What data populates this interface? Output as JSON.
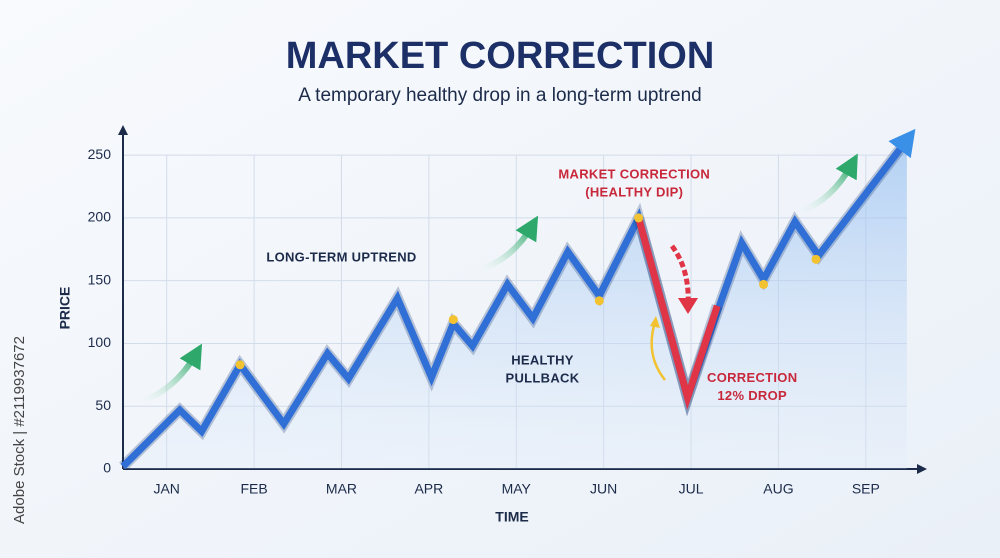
{
  "chart_data": {
    "type": "line",
    "title": "MARKET CORRECTION",
    "subtitle": "A temporary healthy drop in a long-term uptrend",
    "x_label": "TIME",
    "y_label": "PRICE",
    "watermark": "Adobe Stock | #2119937672",
    "xlim": [
      0.5,
      9.7
    ],
    "xticks": [
      {
        "value": 1,
        "label": "JAN"
      },
      {
        "value": 2,
        "label": "FEB"
      },
      {
        "value": 3,
        "label": "MAR"
      },
      {
        "value": 4,
        "label": "APR"
      },
      {
        "value": 5,
        "label": "MAY"
      },
      {
        "value": 6,
        "label": "JUN"
      },
      {
        "value": 7,
        "label": "JUL"
      },
      {
        "value": 8,
        "label": "AUG"
      },
      {
        "value": 9,
        "label": "SEP"
      }
    ],
    "ylim": [
      0,
      270
    ],
    "yticks": [
      0,
      50,
      100,
      150,
      200,
      250
    ],
    "grid": true,
    "series": [
      {
        "color": "#2f6fd6",
        "x": [
          0.5,
          1.15,
          1.4,
          1.84,
          2.34,
          2.84,
          3.08,
          3.64,
          4.03,
          4.28,
          4.5,
          4.9,
          5.19,
          5.59,
          5.95,
          6.4,
          6.96,
          7.35,
          7.58,
          7.83,
          8.19,
          8.46,
          9.47
        ],
        "values": [
          2,
          47,
          30,
          83,
          36,
          92,
          72,
          136,
          73,
          116,
          98,
          147,
          120,
          173,
          138,
          200,
          57,
          135,
          180,
          151,
          197,
          170,
          262
        ]
      },
      {
        "color": "#e03546",
        "x": [
          6.4,
          6.96,
          7.3
        ],
        "values": [
          200,
          57,
          130
        ]
      }
    ],
    "highlights": {
      "color": "#f2c230",
      "x": [
        1.84,
        4.28,
        5.95,
        6.4,
        7.83,
        8.43
      ],
      "values": [
        83,
        119,
        134,
        200,
        147,
        167
      ]
    },
    "annotations": [
      {
        "lines": [
          "LONG-TERM UPTREND"
        ],
        "x": 3.0,
        "y": 168,
        "color": "#1c2b4a"
      },
      {
        "lines": [
          "MARKET CORRECTION",
          "(HEALTHY DIP)"
        ],
        "x": 6.35,
        "y": 234,
        "color": "#c8283a"
      },
      {
        "lines": [
          "HEALTHY",
          "PULLBACK"
        ],
        "x": 5.3,
        "y": 86,
        "color": "#1c2b4a"
      },
      {
        "lines": [
          "CORRECTION",
          "12% DROP"
        ],
        "x": 7.7,
        "y": 72,
        "color": "#c8283a"
      }
    ]
  }
}
